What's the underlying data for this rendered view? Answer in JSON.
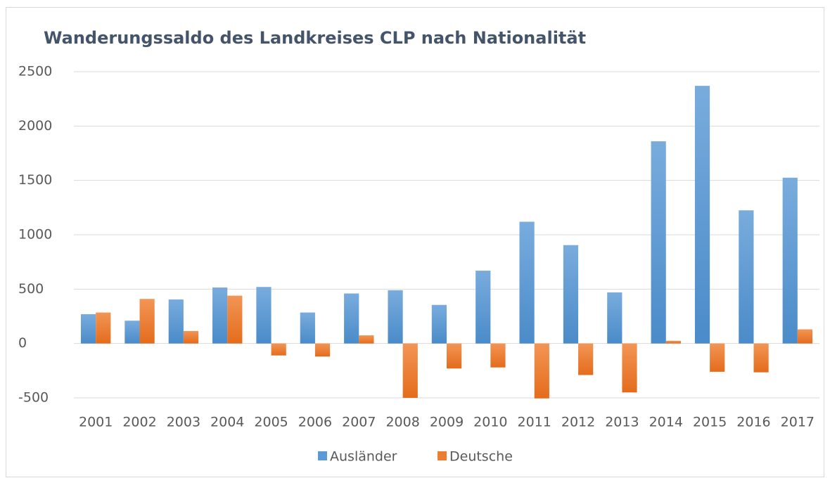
{
  "chart_data": {
    "type": "bar",
    "title": "Wanderungssaldo des Landkreises CLP nach Nationalität",
    "categories": [
      "2001",
      "2002",
      "2003",
      "2004",
      "2005",
      "2006",
      "2007",
      "2008",
      "2009",
      "2010",
      "2011",
      "2012",
      "2013",
      "2014",
      "2015",
      "2016",
      "2017"
    ],
    "series": [
      {
        "name": "Ausländer",
        "color": "#5b9bd5",
        "values": [
          270,
          210,
          405,
          515,
          520,
          285,
          460,
          490,
          355,
          670,
          1120,
          905,
          470,
          1860,
          2370,
          1225,
          1525
        ]
      },
      {
        "name": "Deutsche",
        "color": "#ed7d31",
        "values": [
          285,
          410,
          115,
          440,
          -110,
          -120,
          75,
          -500,
          -230,
          -220,
          -505,
          -290,
          -450,
          25,
          -260,
          -265,
          130
        ]
      }
    ],
    "ylim": [
      -500,
      2500
    ],
    "yticks": [
      -500,
      0,
      500,
      1000,
      1500,
      2000,
      2500
    ],
    "grid": true,
    "legend": "bottom"
  }
}
